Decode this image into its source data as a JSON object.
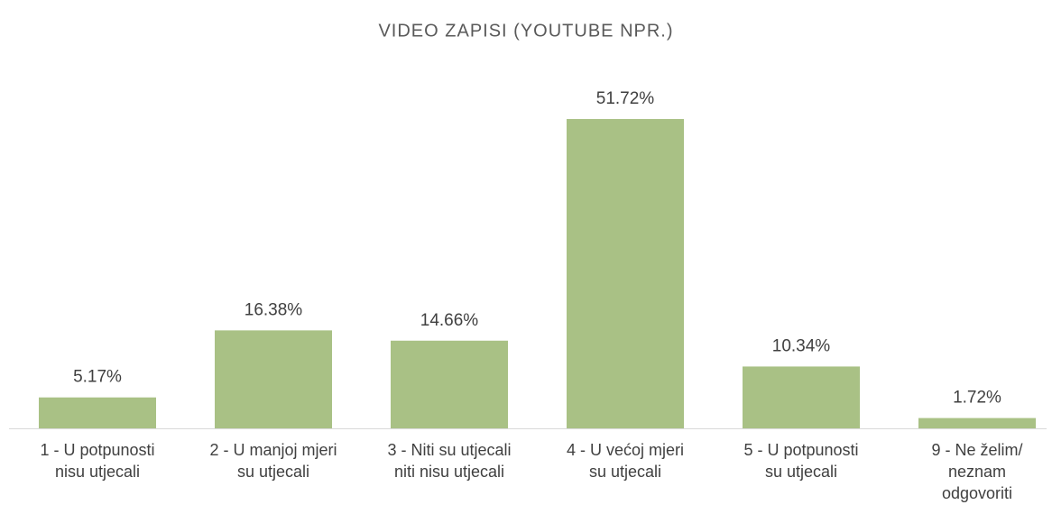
{
  "chart_data": {
    "type": "bar",
    "title": "VIDEO ZAPISI (YOUTUBE NPR.)",
    "categories": [
      "1 - U potpunosti\nnisu utjecali",
      "2 - U manjoj mjeri\nsu utjecali",
      "3 - Niti su utjecali\nniti nisu utjecali",
      "4 - U većoj mjeri\nsu utjecali",
      "5 - U potpunosti\nsu utjecali",
      "9 - Ne želim/\nneznam\nodgovoriti"
    ],
    "values": [
      5.17,
      16.38,
      14.66,
      51.72,
      10.34,
      1.72
    ],
    "value_labels": [
      "5.17%",
      "16.38%",
      "14.66%",
      "51.72%",
      "10.34%",
      "1.72%"
    ],
    "color": "#a9c185"
  }
}
